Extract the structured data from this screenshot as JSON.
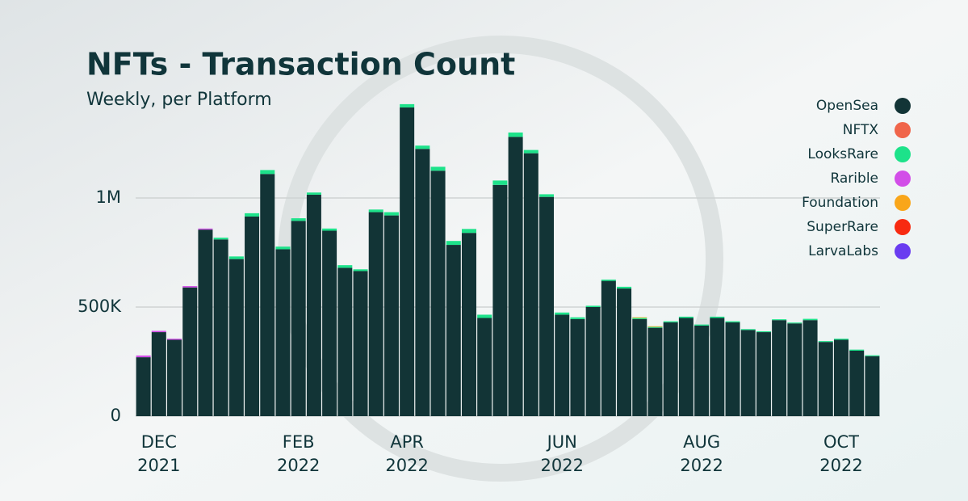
{
  "chart_data": {
    "type": "stacked_bar",
    "title": "NFTs - Transaction Count",
    "subtitle": "Weekly, per Platform",
    "categories": [
      null,
      "DEC 2021",
      null,
      null,
      null,
      null,
      null,
      null,
      null,
      null,
      "FEB 2022",
      null,
      null,
      null,
      null,
      null,
      null,
      "APR 2022",
      null,
      null,
      null,
      null,
      null,
      null,
      null,
      null,
      null,
      "JUN 2022",
      null,
      null,
      null,
      null,
      null,
      null,
      null,
      null,
      "AUG 2022",
      null,
      null,
      null,
      null,
      null,
      null,
      null,
      null,
      "OCT 2022",
      null,
      null
    ],
    "series": [
      {
        "name": "OpenSea",
        "color": "#123436",
        "values": [
          270000,
          385000,
          350000,
          590000,
          855000,
          810000,
          720000,
          915000,
          1110000,
          765000,
          895000,
          1015000,
          850000,
          680000,
          665000,
          935000,
          920000,
          1415000,
          1225000,
          1125000,
          785000,
          840000,
          450000,
          1060000,
          1280000,
          1205000,
          1005000,
          465000,
          445000,
          500000,
          620000,
          585000,
          445000,
          405000,
          430000,
          450000,
          415000,
          450000,
          430000,
          395000,
          385000,
          440000,
          425000,
          440000,
          340000,
          350000,
          300000,
          275000
        ]
      },
      {
        "name": "NFTX",
        "color": "#f0654a",
        "values": [
          0,
          0,
          0,
          0,
          0,
          0,
          0,
          0,
          0,
          0,
          0,
          0,
          0,
          0,
          0,
          0,
          0,
          0,
          0,
          0,
          0,
          0,
          0,
          0,
          0,
          0,
          0,
          0,
          0,
          0,
          0,
          0,
          0,
          0,
          0,
          0,
          0,
          0,
          0,
          0,
          0,
          0,
          0,
          0,
          0,
          0,
          0,
          0
        ]
      },
      {
        "name": "LooksRare",
        "color": "#1de28a",
        "values": [
          0,
          0,
          0,
          0,
          0,
          8000,
          12000,
          15000,
          18000,
          12000,
          12000,
          10000,
          10000,
          12000,
          8000,
          12000,
          15000,
          15000,
          15000,
          18000,
          18000,
          18000,
          15000,
          20000,
          20000,
          15000,
          12000,
          10000,
          8000,
          6000,
          6000,
          8000,
          5000,
          4000,
          5000,
          6000,
          5000,
          6000,
          5000,
          4000,
          4000,
          4000,
          4000,
          6000,
          4000,
          5000,
          5000,
          4000
        ]
      },
      {
        "name": "Rarible",
        "color": "#d24ee8",
        "values": [
          8000,
          6000,
          5000,
          6000,
          5000,
          0,
          0,
          0,
          0,
          0,
          0,
          0,
          0,
          0,
          0,
          0,
          0,
          0,
          0,
          0,
          0,
          0,
          0,
          0,
          0,
          0,
          0,
          0,
          0,
          0,
          0,
          0,
          0,
          0,
          0,
          0,
          0,
          0,
          0,
          0,
          0,
          0,
          0,
          0,
          0,
          0,
          0,
          0
        ]
      },
      {
        "name": "Foundation",
        "color": "#f9a61a",
        "values": [
          0,
          0,
          0,
          0,
          0,
          0,
          0,
          0,
          0,
          0,
          0,
          0,
          0,
          0,
          0,
          0,
          0,
          0,
          0,
          0,
          0,
          0,
          0,
          0,
          0,
          0,
          0,
          0,
          0,
          0,
          0,
          0,
          3000,
          3000,
          0,
          0,
          0,
          0,
          0,
          0,
          0,
          0,
          0,
          0,
          0,
          0,
          0,
          0
        ]
      },
      {
        "name": "SuperRare",
        "color": "#f82a10",
        "values": [
          0,
          0,
          0,
          0,
          0,
          0,
          0,
          0,
          0,
          0,
          0,
          0,
          0,
          0,
          0,
          0,
          0,
          0,
          0,
          0,
          0,
          0,
          0,
          0,
          0,
          0,
          0,
          0,
          0,
          0,
          0,
          0,
          0,
          0,
          0,
          0,
          0,
          0,
          0,
          0,
          0,
          0,
          0,
          0,
          0,
          0,
          0,
          0
        ]
      },
      {
        "name": "LarvaLabs",
        "color": "#6a3cf0",
        "values": [
          0,
          0,
          0,
          0,
          0,
          0,
          0,
          0,
          0,
          0,
          0,
          0,
          0,
          0,
          0,
          0,
          0,
          0,
          0,
          0,
          0,
          0,
          0,
          0,
          0,
          0,
          0,
          0,
          0,
          0,
          0,
          0,
          0,
          0,
          0,
          0,
          0,
          0,
          0,
          0,
          0,
          0,
          0,
          0,
          0,
          0,
          0,
          0
        ]
      }
    ],
    "ylim": [
      0,
      1500000
    ],
    "yticks": [
      0,
      {
        "value": 500000,
        "label": "500K"
      },
      {
        "value": 1000000,
        "label": "1M"
      }
    ],
    "grid": true,
    "legend": "top-right"
  }
}
